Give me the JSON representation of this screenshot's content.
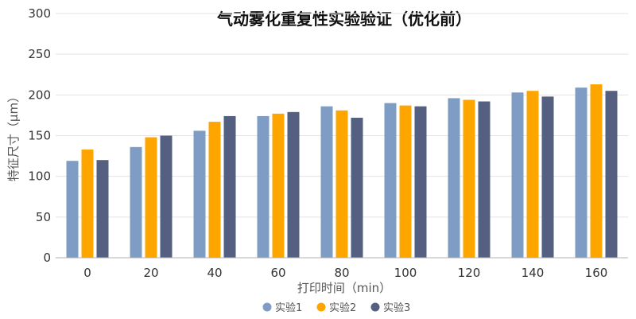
{
  "chart_data": {
    "type": "bar",
    "title": "气动雾化重复性实验验证（优化前）",
    "xlabel": "打印时间（min）",
    "ylabel": "特征尺寸（μm）",
    "categories": [
      "0",
      "20",
      "40",
      "60",
      "80",
      "100",
      "120",
      "140",
      "160"
    ],
    "ylim": [
      0,
      300
    ],
    "yticks": [
      0,
      50,
      100,
      150,
      200,
      250,
      300
    ],
    "grid": true,
    "legend_position": "bottom",
    "series": [
      {
        "name": "实验1",
        "color": "#7f9cc4",
        "values": [
          119,
          136,
          156,
          174,
          186,
          190,
          196,
          203,
          209
        ]
      },
      {
        "name": "实验2",
        "color": "#ffa500",
        "values": [
          133,
          148,
          167,
          177,
          181,
          187,
          194,
          205,
          213
        ]
      },
      {
        "name": "实验3",
        "color": "#556080",
        "values": [
          120,
          150,
          174,
          179,
          172,
          186,
          192,
          198,
          205
        ]
      }
    ]
  }
}
